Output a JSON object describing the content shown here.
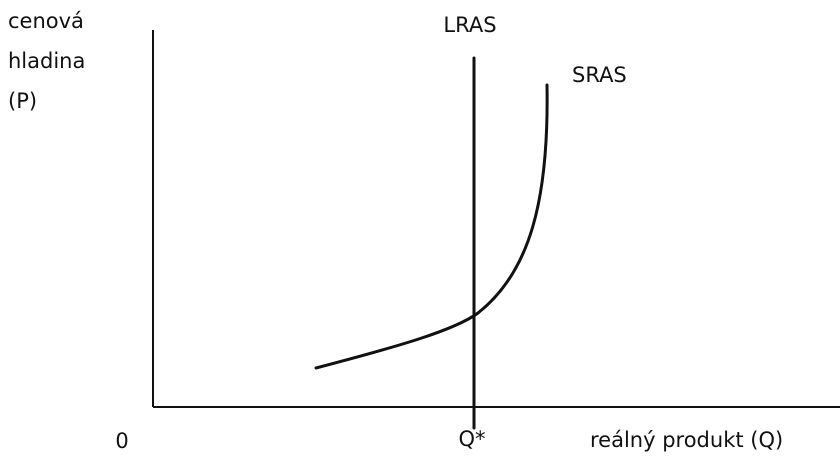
{
  "y_axis_label": [
    "cenová",
    "hladina",
    "(P)"
  ],
  "lras_label": "LRAS",
  "sras_label": "SRAS",
  "origin_label": "0",
  "equilibrium_label": "Q*",
  "x_axis_label": "reálný produkt (Q)"
}
